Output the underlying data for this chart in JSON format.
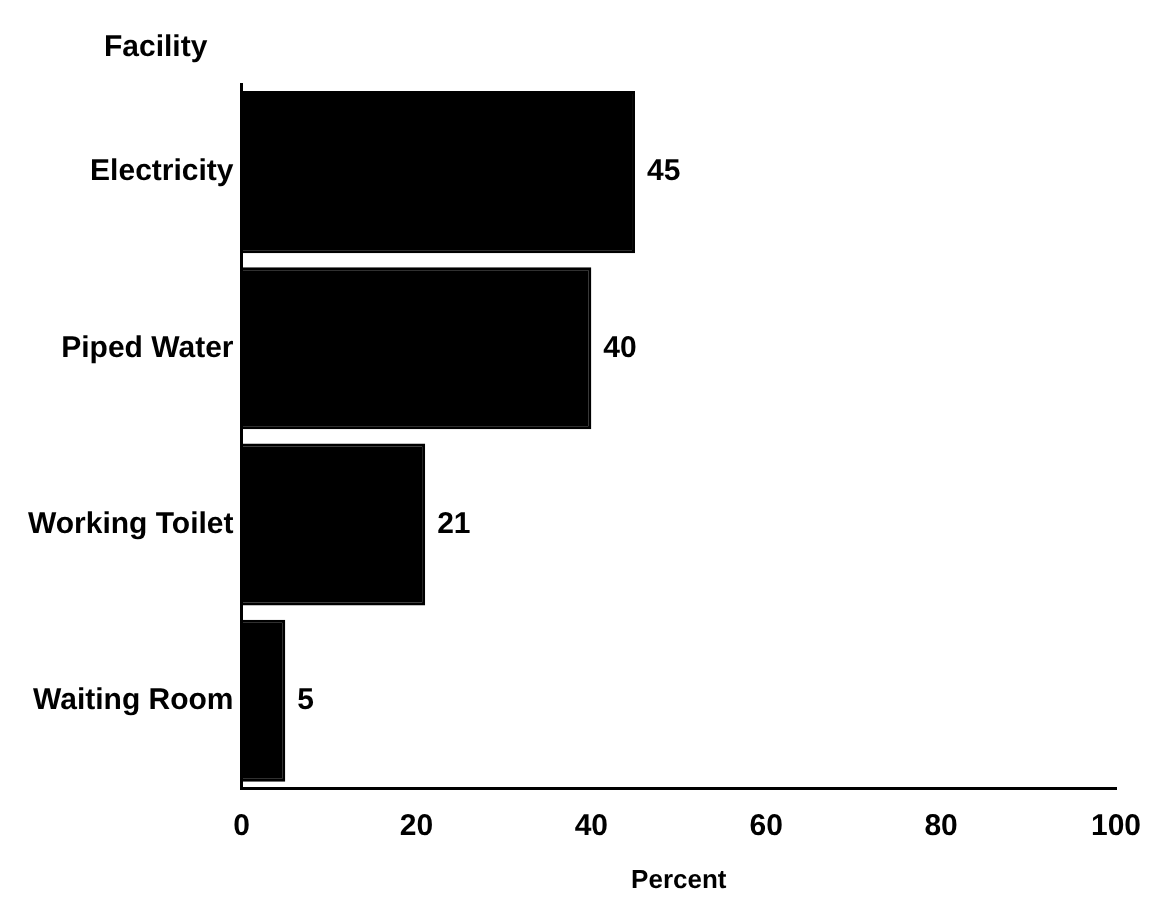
{
  "chart_data": {
    "type": "bar",
    "orientation": "horizontal",
    "ylabel": "Facility",
    "xlabel": "Percent",
    "categories": [
      "Electricity",
      "Piped Water",
      "Working Toilet",
      "Waiting Room"
    ],
    "values": [
      45,
      40,
      21,
      5
    ],
    "color": "#000000",
    "xlim": [
      0,
      100
    ],
    "xticks": [
      0,
      20,
      40,
      60,
      80,
      100
    ],
    "grid": false,
    "legend": false,
    "data_labels": true
  }
}
